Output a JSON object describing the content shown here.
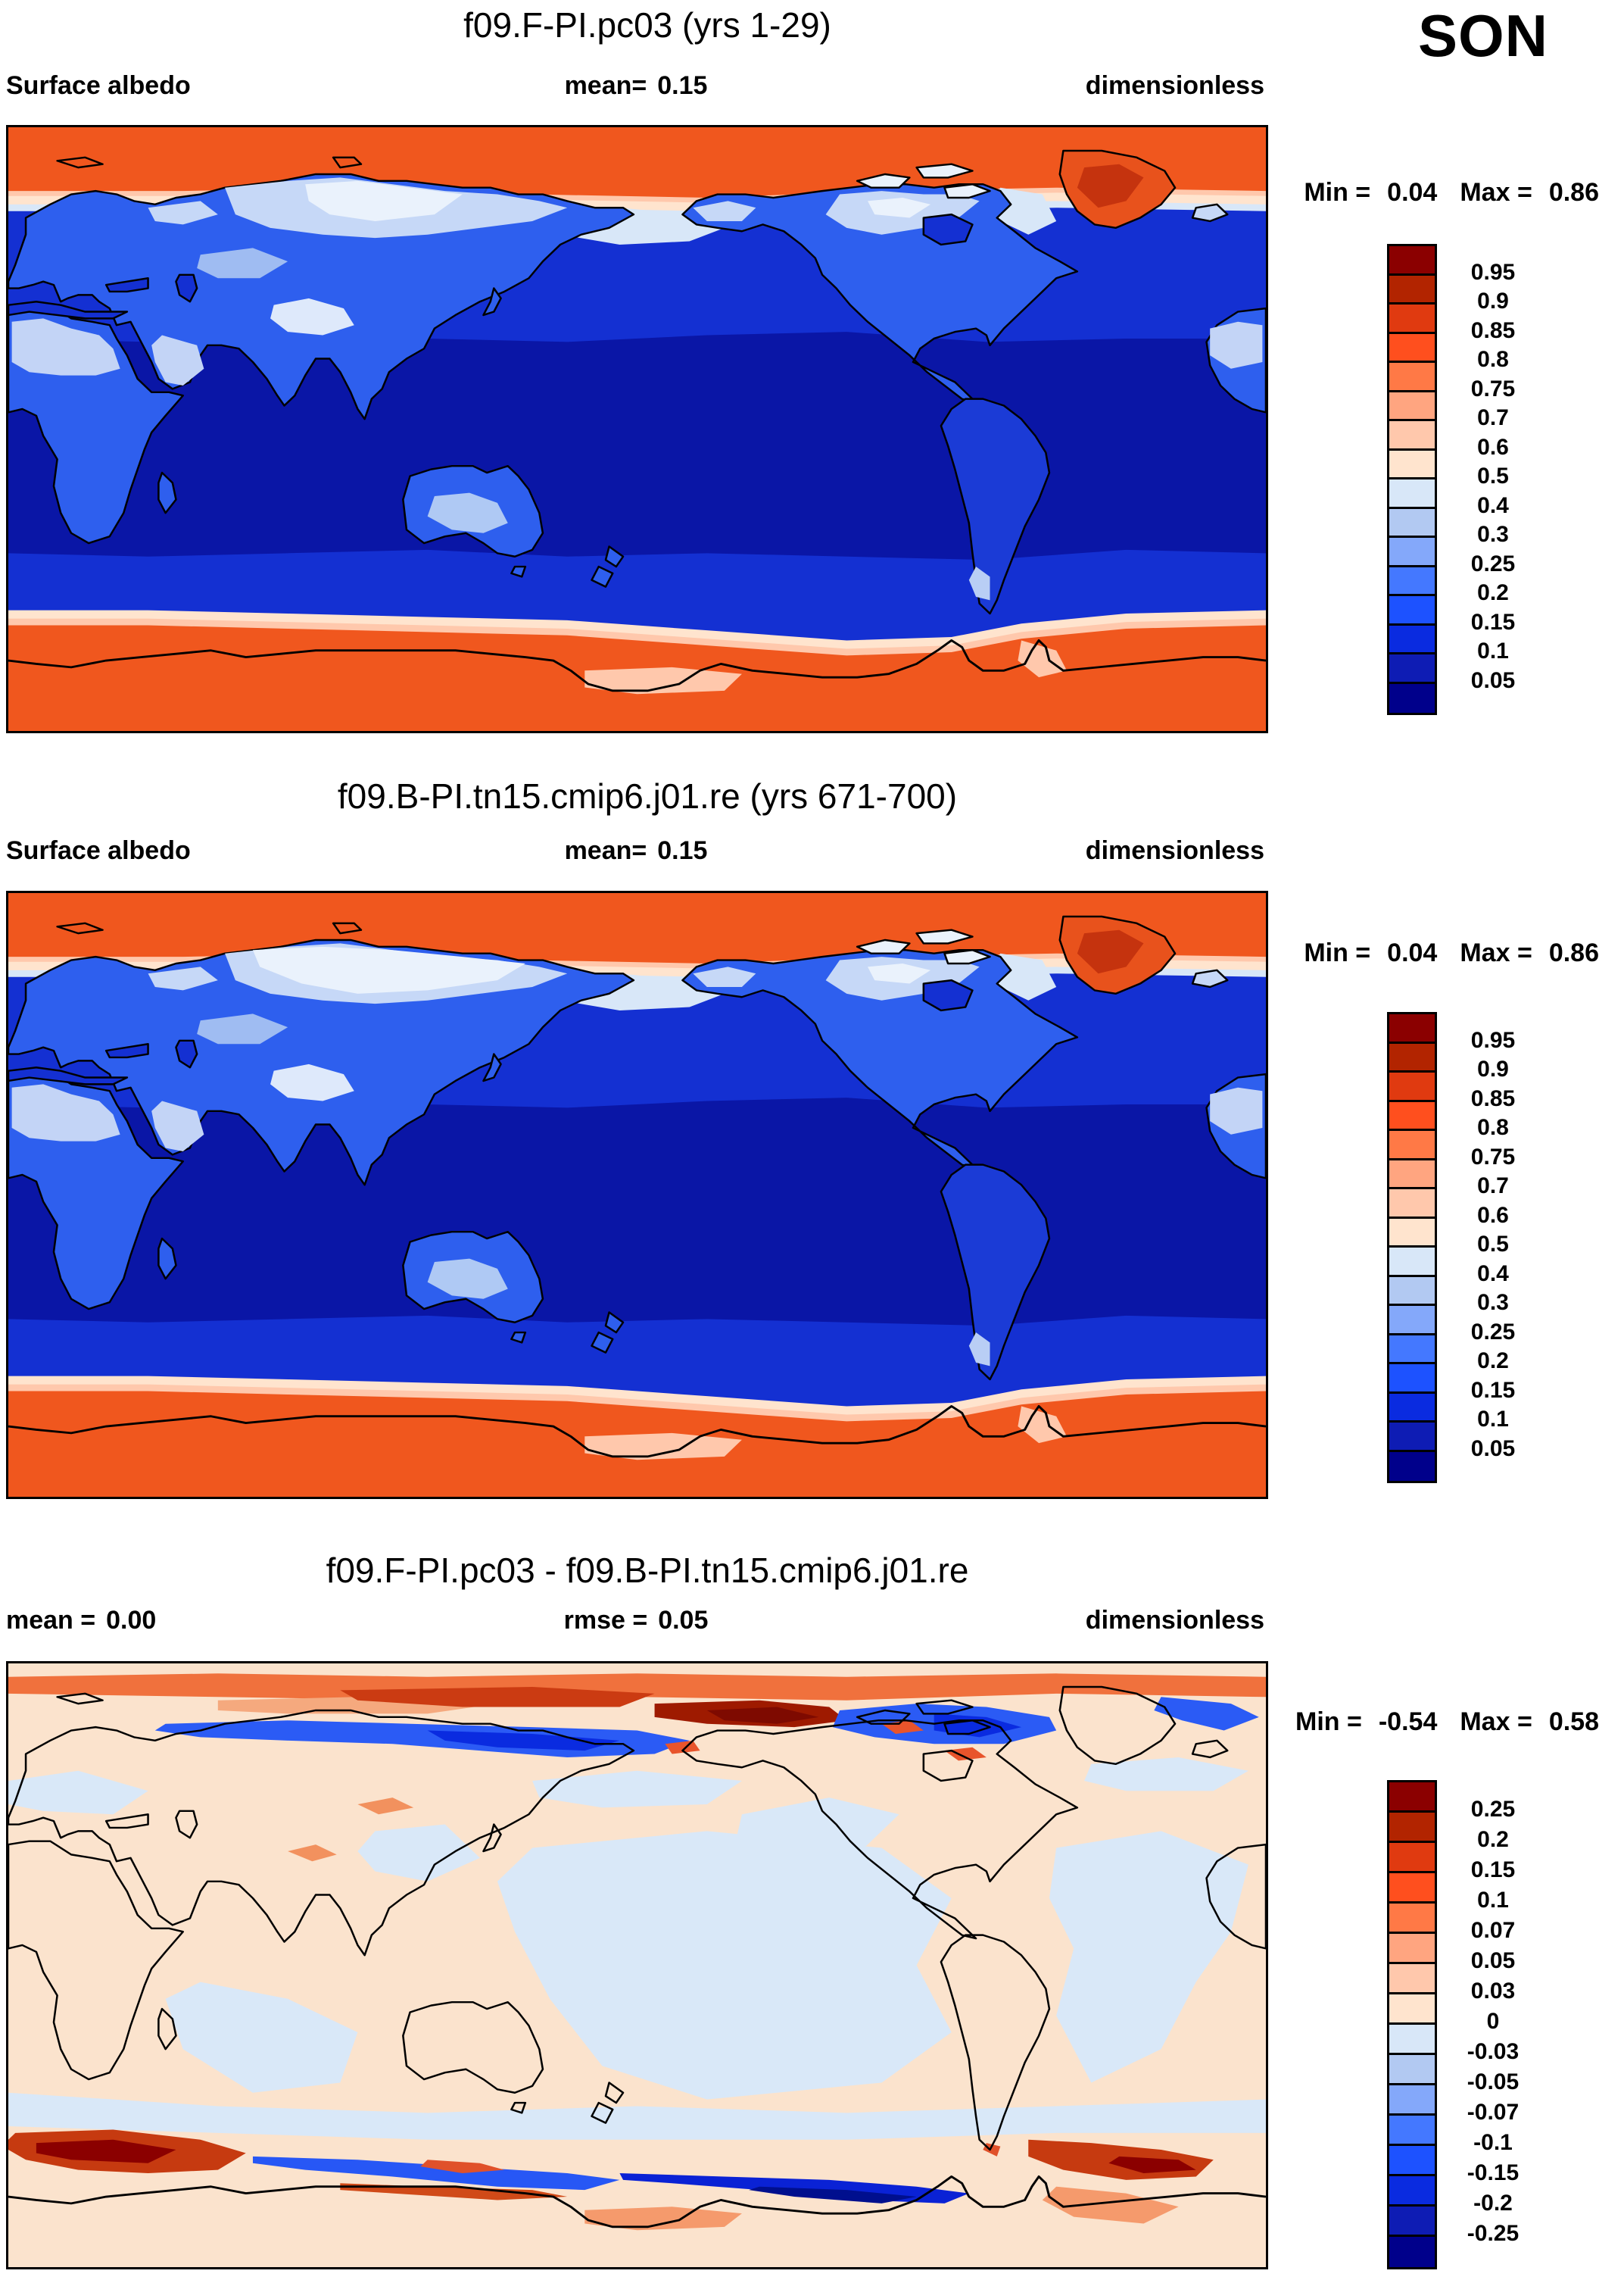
{
  "season": "SON",
  "panel1": {
    "title": "f09.F-PI.pc03 (yrs 1-29)",
    "variable": "Surface albedo",
    "mean_label": "mean=",
    "mean": "0.15",
    "units": "dimensionless",
    "min_label": "Min =",
    "min": "0.04",
    "max_label": "Max =",
    "max": "0.86"
  },
  "panel2": {
    "title": "f09.B-PI.tn15.cmip6.j01.re (yrs 671-700)",
    "variable": "Surface albedo",
    "mean_label": "mean=",
    "mean": "0.15",
    "units": "dimensionless",
    "min_label": "Min =",
    "min": "0.04",
    "max_label": "Max =",
    "max": "0.86"
  },
  "panel3": {
    "title": "f09.F-PI.pc03 - f09.B-PI.tn15.cmip6.j01.re",
    "mean_label": "mean =",
    "mean": "0.00",
    "rmse_label": "rmse =",
    "rmse": "0.05",
    "units": "dimensionless",
    "min_label": "Min =",
    "min": "-0.54",
    "max_label": "Max =",
    "max": "0.58"
  },
  "colorbar_abs": {
    "tick_labels": [
      "0.95",
      "0.9",
      "0.85",
      "0.8",
      "0.75",
      "0.7",
      "0.6",
      "0.5",
      "0.4",
      "0.3",
      "0.25",
      "0.2",
      "0.15",
      "0.1",
      "0.05"
    ],
    "colors_top_to_bottom": [
      "#8B0000",
      "#B22400",
      "#E03A10",
      "#FF4F1E",
      "#FF7946",
      "#FFA580",
      "#FFC8AC",
      "#FFE4CE",
      "#D8E7F8",
      "#B2C9F2",
      "#84A8FA",
      "#4478FF",
      "#1D52FF",
      "#0A2BE0",
      "#0E1CB4",
      "#00008B"
    ]
  },
  "colorbar_diff": {
    "tick_labels": [
      "0.25",
      "0.2",
      "0.15",
      "0.1",
      "0.07",
      "0.05",
      "0.03",
      "0",
      "-0.03",
      "-0.05",
      "-0.07",
      "-0.1",
      "-0.15",
      "-0.2",
      "-0.25"
    ],
    "colors_top_to_bottom": [
      "#8B0000",
      "#B22400",
      "#E03A10",
      "#FF4F1E",
      "#FF7946",
      "#FFA580",
      "#FFC8AC",
      "#FFE4CE",
      "#D8E7F8",
      "#B2C9F2",
      "#84A8FA",
      "#4478FF",
      "#1D52FF",
      "#0A2BE0",
      "#0E1CB4",
      "#00008B"
    ]
  },
  "chart_data": [
    {
      "type": "heatmap",
      "subtype": "global-contour-map",
      "title": "f09.F-PI.pc03 (yrs 1-29)",
      "variable": "Surface albedo",
      "units": "dimensionless",
      "season": "SON",
      "mean": 0.15,
      "min": 0.04,
      "max": 0.86,
      "contour_levels": [
        0.05,
        0.1,
        0.15,
        0.2,
        0.25,
        0.3,
        0.4,
        0.5,
        0.6,
        0.7,
        0.75,
        0.8,
        0.85,
        0.9,
        0.95
      ],
      "palette_low_to_high": [
        "#00008B",
        "#0E1CB4",
        "#0A2BE0",
        "#1D52FF",
        "#4478FF",
        "#84A8FA",
        "#B2C9F2",
        "#D8E7F8",
        "#FFE4CE",
        "#FFC8AC",
        "#FFA580",
        "#FF7946",
        "#FF4F1E",
        "#E03A10",
        "#B22400",
        "#8B0000"
      ],
      "projection": "cylindrical equidistant, lon 0-360E, lat 90S-90N, Pacific centered",
      "legend_position": "right",
      "pattern_notes": "Oceans 0.05-0.1 (dark/navy blue, darkest in tropics); land 0.1-0.3 (medium blue); snow-covered Siberia, northern Canada, Tibet and deserts 0.3-0.6 (pale blue to white); Arctic sea ice, Greenland and Antarctica 0.7-0.85 (orange/red)"
    },
    {
      "type": "heatmap",
      "subtype": "global-contour-map",
      "title": "f09.B-PI.tn15.cmip6.j01.re (yrs 671-700)",
      "variable": "Surface albedo",
      "units": "dimensionless",
      "season": "SON",
      "mean": 0.15,
      "min": 0.04,
      "max": 0.86,
      "contour_levels": [
        0.05,
        0.1,
        0.15,
        0.2,
        0.25,
        0.3,
        0.4,
        0.5,
        0.6,
        0.7,
        0.75,
        0.8,
        0.85,
        0.9,
        0.95
      ],
      "palette_low_to_high": [
        "#00008B",
        "#0E1CB4",
        "#0A2BE0",
        "#1D52FF",
        "#4478FF",
        "#84A8FA",
        "#B2C9F2",
        "#D8E7F8",
        "#FFE4CE",
        "#FFC8AC",
        "#FFA580",
        "#FF7946",
        "#FF4F1E",
        "#E03A10",
        "#B22400",
        "#8B0000"
      ],
      "projection": "cylindrical equidistant, lon 0-360E, lat 90S-90N, Pacific centered",
      "legend_position": "right",
      "pattern_notes": "Same pattern as panel 1 with slightly more extensive high-albedo (white) snow cover over Siberia and the Kara Sea sector"
    },
    {
      "type": "heatmap",
      "subtype": "global-difference-map",
      "title": "f09.F-PI.pc03 - f09.B-PI.tn15.cmip6.j01.re",
      "variable": "Surface albedo difference",
      "units": "dimensionless",
      "season": "SON",
      "mean": 0.0,
      "rmse": 0.05,
      "min": -0.54,
      "max": 0.58,
      "contour_levels": [
        -0.25,
        -0.2,
        -0.15,
        -0.1,
        -0.07,
        -0.05,
        -0.03,
        0,
        0.03,
        0.05,
        0.07,
        0.1,
        0.15,
        0.2,
        0.25
      ],
      "palette_low_to_high": [
        "#00008B",
        "#0E1CB4",
        "#0A2BE0",
        "#1D52FF",
        "#4478FF",
        "#84A8FA",
        "#B2C9F2",
        "#D8E7F8",
        "#FFE4CE",
        "#FFC8AC",
        "#FFA580",
        "#FF7946",
        "#FF4F1E",
        "#E03A10",
        "#B22400",
        "#8B0000"
      ],
      "projection": "cylindrical equidistant, lon 0-360E, lat 90S-90N, Pacific centered",
      "legend_position": "right",
      "pattern_notes": "Near zero (pale peach / pale blue) over most oceans and continents; positive bands +0.1..+0.25 (red) in the central Arctic, Beaufort sector, Atlantic/Indian Southern Ocean (~55S) and near the Antarctic Peninsula; negative bands -0.1..-0.25 (blue) along the Siberian and Canadian Arctic coasts and in the Ross/Amundsen Southern Ocean sector (~62-68S)"
    }
  ]
}
